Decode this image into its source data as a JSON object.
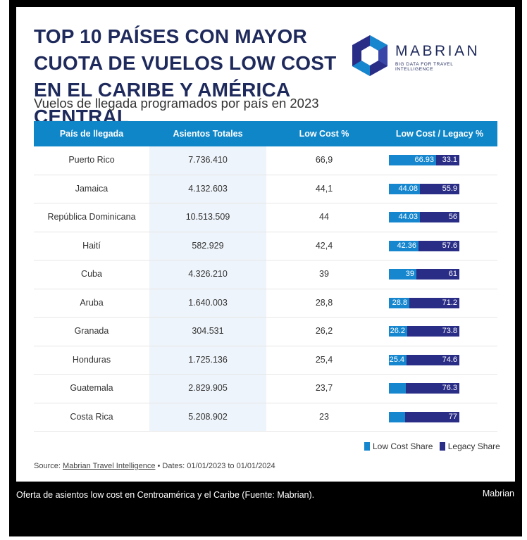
{
  "header": {
    "title": "TOP 10 PAÍSES CON MAYOR CUOTA DE VUELOS LOW COST EN EL CARIBE Y AMÉRICA CENTRAL",
    "subtitle": "Vuelos de llegada programados por país en 2023"
  },
  "logo": {
    "name": "MABRIAN",
    "tagline": "BIG DATA FOR TRAVEL INTELLIGENCE"
  },
  "table": {
    "headers": [
      "País de llegada",
      "Asientos Totales",
      "Low Cost %",
      "Low Cost / Legacy %"
    ]
  },
  "chart_data": {
    "type": "table",
    "title": "TOP 10 PAÍSES CON MAYOR CUOTA DE VUELOS LOW COST EN EL CARIBE Y AMÉRICA CENTRAL",
    "subtitle": "Vuelos de llegada programados por país en 2023",
    "rows": [
      {
        "country": "Puerto Rico",
        "seats": "7.736.410",
        "low_cost_pct": "66,9",
        "low_cost_share": 66.93,
        "legacy_share": 33.1,
        "lc_label": "66.93",
        "lg_label": "33.1"
      },
      {
        "country": "Jamaica",
        "seats": "4.132.603",
        "low_cost_pct": "44,1",
        "low_cost_share": 44.08,
        "legacy_share": 55.9,
        "lc_label": "44.08",
        "lg_label": "55.9"
      },
      {
        "country": "República Dominicana",
        "seats": "10.513.509",
        "low_cost_pct": "44",
        "low_cost_share": 44.03,
        "legacy_share": 56,
        "lc_label": "44.03",
        "lg_label": "56"
      },
      {
        "country": "Haití",
        "seats": "582.929",
        "low_cost_pct": "42,4",
        "low_cost_share": 42.36,
        "legacy_share": 57.6,
        "lc_label": "42.36",
        "lg_label": "57.6"
      },
      {
        "country": "Cuba",
        "seats": "4.326.210",
        "low_cost_pct": "39",
        "low_cost_share": 39,
        "legacy_share": 61,
        "lc_label": "39",
        "lg_label": "61"
      },
      {
        "country": "Aruba",
        "seats": "1.640.003",
        "low_cost_pct": "28,8",
        "low_cost_share": 28.8,
        "legacy_share": 71.2,
        "lc_label": "28.8",
        "lg_label": "71.2"
      },
      {
        "country": "Granada",
        "seats": "304.531",
        "low_cost_pct": "26,2",
        "low_cost_share": 26.2,
        "legacy_share": 73.8,
        "lc_label": "26.2",
        "lg_label": "73.8"
      },
      {
        "country": "Honduras",
        "seats": "1.725.136",
        "low_cost_pct": "25,4",
        "low_cost_share": 25.4,
        "legacy_share": 74.6,
        "lc_label": "25.4",
        "lg_label": "74.6"
      },
      {
        "country": "Guatemala",
        "seats": "2.829.905",
        "low_cost_pct": "23,7",
        "low_cost_share": 23.7,
        "legacy_share": 76.3,
        "lc_label": "",
        "lg_label": "76.3"
      },
      {
        "country": "Costa Rica",
        "seats": "5.208.902",
        "low_cost_pct": "23",
        "low_cost_share": 23,
        "legacy_share": 77,
        "lc_label": "",
        "lg_label": "77"
      }
    ],
    "legend": [
      "Low Cost Share",
      "Legacy Share"
    ],
    "colors": {
      "low_cost": "#1687cf",
      "legacy": "#2a2d86",
      "header": "#0f86c8"
    }
  },
  "source": {
    "prefix": "Source:",
    "link": "Mabrian Travel Intelligence",
    "dates": "• Dates: 01/01/2023 to 01/01/2024"
  },
  "caption": {
    "text": "Oferta de asientos low cost en Centroamérica y el Caribe (Fuente: Mabrian).",
    "credit": "Mabrian"
  }
}
